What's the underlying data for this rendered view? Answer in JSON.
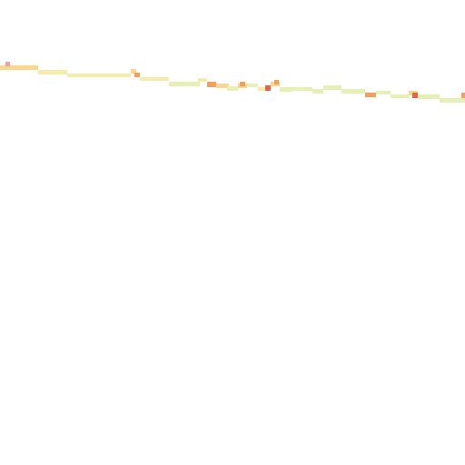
{
  "map_tile": {
    "type": "heatmap-raster-tile",
    "background_color": "#ffffff",
    "palette": {
      "green_yellow": "#e6f0b4",
      "pale_yellow": "#f6ebaa",
      "light_orange": "#fad791",
      "orange": "#f5a05a",
      "red_orange": "#e66446",
      "pink": "#f5a0a0"
    }
  }
}
